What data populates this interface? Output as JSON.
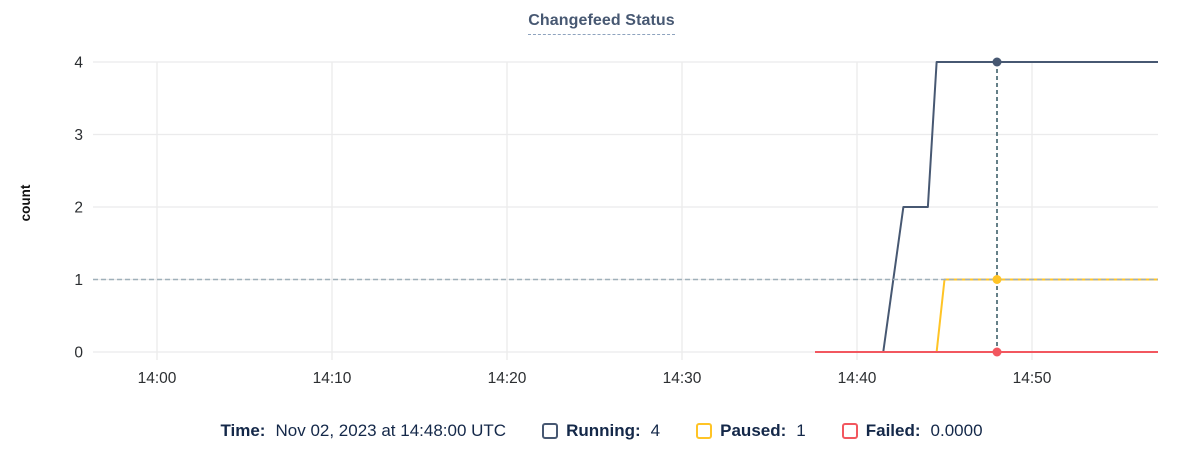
{
  "title": "Changefeed Status",
  "y_axis_label": "count",
  "legend": {
    "time_label": "Time:",
    "time_value": "Nov 02, 2023 at 14:48:00 UTC",
    "items": [
      {
        "label": "Running:",
        "value": "4",
        "color": "#475872"
      },
      {
        "label": "Paused:",
        "value": "1",
        "color": "#ffc426"
      },
      {
        "label": "Failed:",
        "value": "0.0000",
        "color": "#f2575f"
      }
    ]
  },
  "chart_data": {
    "type": "line",
    "title": "Changefeed Status",
    "xlabel": "",
    "ylabel": "count",
    "x_unit": "minutes after 14:00 UTC on Nov 02, 2023",
    "xlim": [
      -3.7,
      57.2
    ],
    "ylim": [
      0,
      4
    ],
    "grid": true,
    "x_ticks": [
      {
        "t": 0,
        "label": "14:00"
      },
      {
        "t": 10,
        "label": "14:10"
      },
      {
        "t": 20,
        "label": "14:20"
      },
      {
        "t": 30,
        "label": "14:30"
      },
      {
        "t": 40,
        "label": "14:40"
      },
      {
        "t": 50,
        "label": "14:50"
      }
    ],
    "y_ticks": [
      0,
      1,
      2,
      3,
      4
    ],
    "series": [
      {
        "name": "Running",
        "color": "#475872",
        "points": [
          [
            41.5,
            0
          ],
          [
            42.65,
            2
          ],
          [
            44.05,
            2
          ],
          [
            44.55,
            4
          ],
          [
            57.2,
            4
          ]
        ]
      },
      {
        "name": "Paused",
        "color": "#ffc426",
        "points": [
          [
            44.55,
            0
          ],
          [
            45.0,
            1
          ],
          [
            57.2,
            1
          ]
        ]
      },
      {
        "name": "Failed",
        "color": "#f2575f",
        "points": [
          [
            37.6,
            0
          ],
          [
            57.2,
            0
          ]
        ]
      }
    ],
    "hover": {
      "t": 48,
      "time_label": "Nov 02, 2023 at 14:48:00 UTC",
      "values": {
        "Running": 4,
        "Paused": 1,
        "Failed": 0
      },
      "guide_value": 1
    },
    "colors": {
      "gridline": "#ebebec",
      "guide_dash": "#9fb0ba",
      "crosshair_dash": "#3f616b",
      "tick_label": "#2b2e31",
      "axis_title": "#111111"
    }
  }
}
